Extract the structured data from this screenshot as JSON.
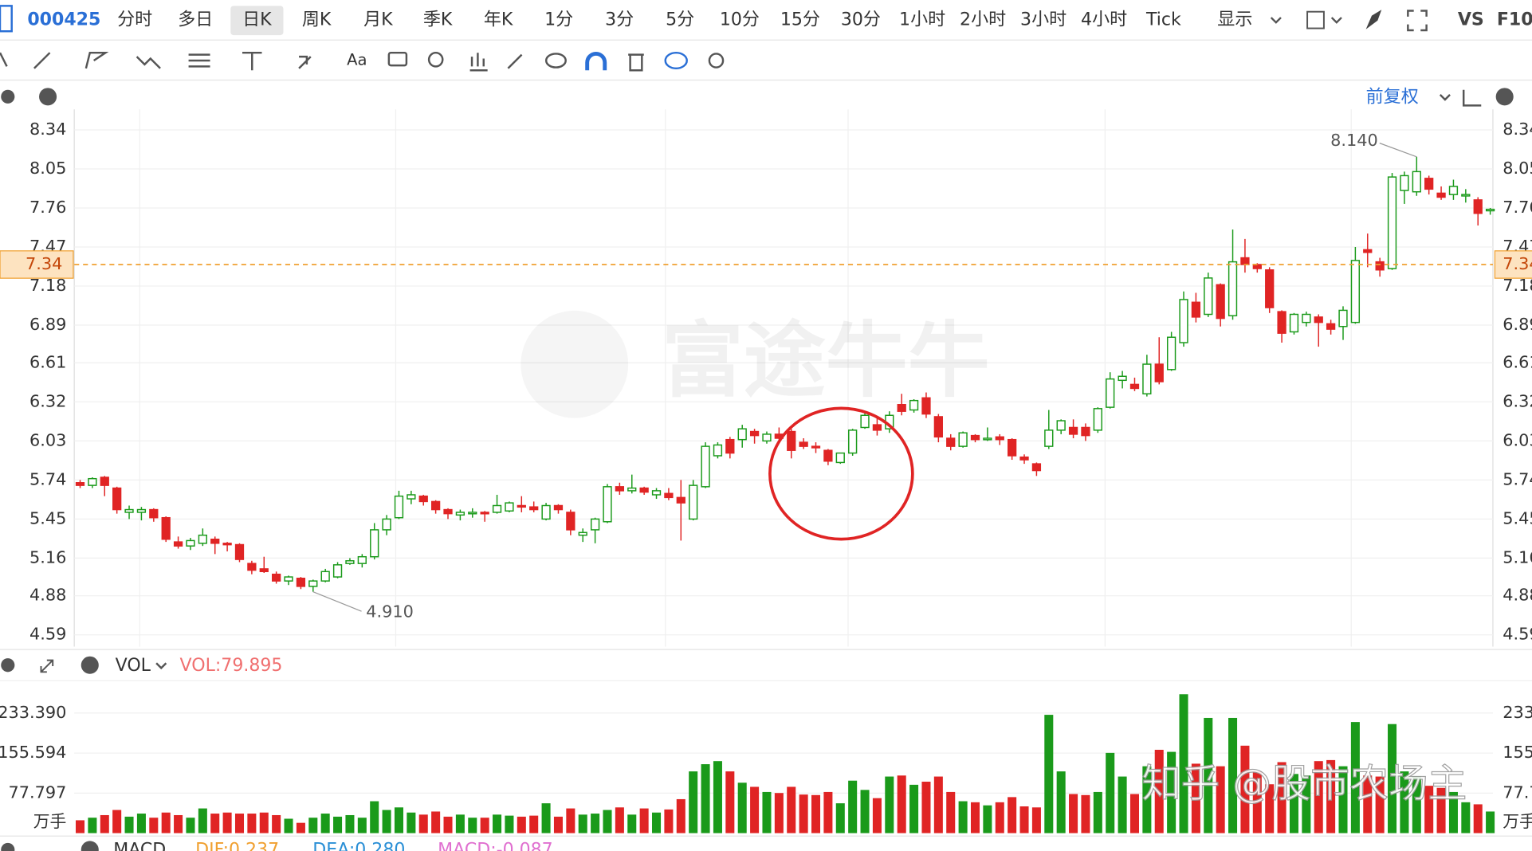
{
  "toolbar": {
    "symbol": "000425",
    "periods": [
      "分时",
      "多日",
      "日K",
      "周K",
      "月K",
      "季K",
      "年K",
      "1分",
      "3分",
      "5分",
      "10分",
      "15分",
      "30分",
      "1小时",
      "2小时",
      "3小时",
      "4小时",
      "Tick"
    ],
    "display": "显示",
    "vs": "VS",
    "f10": "F10",
    "font_button": "Aa",
    "adjust": "前复权"
  },
  "indicators": {
    "vol_name": "VOL",
    "vol_value": "VOL:79.895",
    "macd_name": "MACD",
    "dif": "DIF:0.237",
    "dea": "DEA:0.280",
    "macd": "MACD:-0.087"
  },
  "watermarks": {
    "brand": "富途牛牛",
    "author": "知乎 @股市农场主"
  },
  "chart_data": [
    {
      "type": "candlestick",
      "up_color": "#1a9a1a",
      "down_color": "#e02424",
      "ylim": [
        4.5,
        8.45
      ],
      "yticks": [
        8.34,
        8.05,
        7.76,
        7.47,
        7.18,
        6.89,
        6.61,
        6.32,
        6.03,
        5.74,
        5.45,
        5.16,
        4.88,
        4.59
      ],
      "grid": true,
      "high_label": {
        "value": 8.14,
        "label": "8.140"
      },
      "low_label": {
        "value": 4.91,
        "label": "4.910"
      },
      "price_line": 7.34,
      "price_line_color": "#f0a030",
      "ohlc": [
        [
          5.72,
          5.74,
          5.68,
          5.7
        ],
        [
          5.7,
          5.76,
          5.68,
          5.75
        ],
        [
          5.76,
          5.77,
          5.62,
          5.7
        ],
        [
          5.68,
          5.69,
          5.49,
          5.52
        ],
        [
          5.5,
          5.55,
          5.45,
          5.52
        ],
        [
          5.5,
          5.54,
          5.44,
          5.52
        ],
        [
          5.52,
          5.53,
          5.43,
          5.46
        ],
        [
          5.46,
          5.47,
          5.28,
          5.3
        ],
        [
          5.28,
          5.32,
          5.23,
          5.25
        ],
        [
          5.25,
          5.31,
          5.22,
          5.29
        ],
        [
          5.27,
          5.38,
          5.25,
          5.33
        ],
        [
          5.3,
          5.32,
          5.19,
          5.27
        ],
        [
          5.27,
          5.28,
          5.21,
          5.26
        ],
        [
          5.26,
          5.27,
          5.13,
          5.15
        ],
        [
          5.12,
          5.14,
          5.04,
          5.07
        ],
        [
          5.08,
          5.17,
          5.05,
          5.06
        ],
        [
          5.04,
          5.06,
          4.97,
          4.99
        ],
        [
          4.99,
          5.03,
          4.96,
          5.02
        ],
        [
          5.01,
          5.02,
          4.93,
          4.95
        ],
        [
          4.95,
          5.0,
          4.91,
          4.99
        ],
        [
          4.99,
          5.08,
          4.98,
          5.06
        ],
        [
          5.02,
          5.13,
          5.01,
          5.11
        ],
        [
          5.12,
          5.16,
          5.11,
          5.14
        ],
        [
          5.12,
          5.19,
          5.09,
          5.17
        ],
        [
          5.17,
          5.42,
          5.15,
          5.37
        ],
        [
          5.37,
          5.48,
          5.33,
          5.45
        ],
        [
          5.46,
          5.66,
          5.45,
          5.62
        ],
        [
          5.6,
          5.66,
          5.56,
          5.63
        ],
        [
          5.62,
          5.63,
          5.55,
          5.58
        ],
        [
          5.58,
          5.59,
          5.49,
          5.52
        ],
        [
          5.52,
          5.53,
          5.45,
          5.49
        ],
        [
          5.48,
          5.52,
          5.44,
          5.5
        ],
        [
          5.49,
          5.53,
          5.46,
          5.5
        ],
        [
          5.5,
          5.51,
          5.43,
          5.49
        ],
        [
          5.5,
          5.63,
          5.49,
          5.55
        ],
        [
          5.51,
          5.58,
          5.5,
          5.57
        ],
        [
          5.55,
          5.62,
          5.5,
          5.54
        ],
        [
          5.54,
          5.58,
          5.5,
          5.52
        ],
        [
          5.45,
          5.57,
          5.44,
          5.55
        ],
        [
          5.55,
          5.56,
          5.49,
          5.52
        ],
        [
          5.5,
          5.52,
          5.33,
          5.37
        ],
        [
          5.33,
          5.38,
          5.28,
          5.35
        ],
        [
          5.37,
          5.46,
          5.27,
          5.45
        ],
        [
          5.43,
          5.71,
          5.42,
          5.69
        ],
        [
          5.69,
          5.72,
          5.63,
          5.66
        ],
        [
          5.66,
          5.78,
          5.64,
          5.68
        ],
        [
          5.68,
          5.69,
          5.63,
          5.65
        ],
        [
          5.63,
          5.68,
          5.6,
          5.66
        ],
        [
          5.64,
          5.68,
          5.59,
          5.61
        ],
        [
          5.61,
          5.74,
          5.29,
          5.57
        ],
        [
          5.45,
          5.74,
          5.44,
          5.7
        ],
        [
          5.69,
          6.02,
          5.68,
          5.99
        ],
        [
          5.92,
          6.02,
          5.9,
          6.0
        ],
        [
          6.04,
          6.06,
          5.9,
          5.94
        ],
        [
          6.04,
          6.15,
          5.98,
          6.12
        ],
        [
          6.1,
          6.12,
          6.01,
          6.07
        ],
        [
          6.03,
          6.1,
          6.01,
          6.08
        ],
        [
          6.08,
          6.13,
          6.04,
          6.05
        ],
        [
          6.1,
          6.12,
          5.9,
          5.96
        ],
        [
          6.02,
          6.05,
          5.97,
          5.99
        ],
        [
          5.99,
          6.02,
          5.94,
          5.98
        ],
        [
          5.96,
          5.97,
          5.85,
          5.88
        ],
        [
          5.87,
          5.94,
          5.86,
          5.94
        ],
        [
          5.94,
          6.12,
          5.92,
          6.11
        ],
        [
          6.13,
          6.25,
          6.12,
          6.22
        ],
        [
          6.15,
          6.2,
          6.07,
          6.11
        ],
        [
          6.12,
          6.25,
          6.09,
          6.22
        ],
        [
          6.3,
          6.38,
          6.22,
          6.25
        ],
        [
          6.26,
          6.34,
          6.24,
          6.33
        ],
        [
          6.35,
          6.39,
          6.2,
          6.23
        ],
        [
          6.21,
          6.23,
          6.02,
          6.06
        ],
        [
          6.05,
          6.08,
          5.96,
          5.99
        ],
        [
          5.99,
          6.1,
          5.98,
          6.09
        ],
        [
          6.07,
          6.08,
          6.02,
          6.04
        ],
        [
          6.05,
          6.13,
          6.03,
          6.05
        ],
        [
          6.06,
          6.08,
          6.0,
          6.04
        ],
        [
          6.04,
          6.05,
          5.89,
          5.92
        ],
        [
          5.91,
          5.93,
          5.86,
          5.89
        ],
        [
          5.86,
          5.87,
          5.77,
          5.81
        ],
        [
          5.99,
          6.26,
          5.97,
          6.11
        ],
        [
          6.11,
          6.19,
          6.08,
          6.18
        ],
        [
          6.13,
          6.19,
          6.05,
          6.08
        ],
        [
          6.13,
          6.16,
          6.03,
          6.07
        ],
        [
          6.11,
          6.28,
          6.09,
          6.27
        ],
        [
          6.28,
          6.54,
          6.27,
          6.49
        ],
        [
          6.48,
          6.55,
          6.42,
          6.51
        ],
        [
          6.45,
          6.5,
          6.4,
          6.42
        ],
        [
          6.38,
          6.67,
          6.36,
          6.6
        ],
        [
          6.6,
          6.8,
          6.45,
          6.47
        ],
        [
          6.56,
          6.84,
          6.55,
          6.8
        ],
        [
          6.76,
          7.14,
          6.73,
          7.08
        ],
        [
          7.06,
          7.13,
          6.91,
          6.95
        ],
        [
          6.97,
          7.28,
          6.95,
          7.24
        ],
        [
          7.19,
          7.2,
          6.88,
          6.94
        ],
        [
          6.96,
          7.6,
          6.93,
          7.36
        ],
        [
          7.39,
          7.53,
          7.28,
          7.34
        ],
        [
          7.34,
          7.35,
          7.28,
          7.31
        ],
        [
          7.3,
          7.32,
          6.98,
          7.02
        ],
        [
          6.99,
          7.0,
          6.76,
          6.83
        ],
        [
          6.84,
          6.98,
          6.82,
          6.97
        ],
        [
          6.91,
          6.99,
          6.88,
          6.97
        ],
        [
          6.95,
          6.97,
          6.73,
          6.91
        ],
        [
          6.9,
          6.93,
          6.82,
          6.86
        ],
        [
          6.88,
          7.03,
          6.78,
          7.0
        ],
        [
          6.91,
          7.47,
          6.9,
          7.37
        ],
        [
          7.45,
          7.57,
          7.32,
          7.43
        ],
        [
          7.36,
          7.39,
          7.25,
          7.3
        ],
        [
          7.31,
          8.02,
          7.3,
          7.99
        ],
        [
          7.89,
          8.03,
          7.79,
          8.0
        ],
        [
          7.88,
          8.14,
          7.85,
          8.03
        ],
        [
          7.98,
          8.0,
          7.86,
          7.9
        ],
        [
          7.87,
          7.92,
          7.82,
          7.84
        ],
        [
          7.86,
          7.97,
          7.82,
          7.92
        ],
        [
          7.86,
          7.9,
          7.8,
          7.86
        ],
        [
          7.82,
          7.84,
          7.63,
          7.72
        ],
        [
          7.74,
          7.76,
          7.71,
          7.75
        ]
      ]
    },
    {
      "type": "bar",
      "unit_label": "万手",
      "ylim": [
        0,
        300
      ],
      "yticks": [
        {
          "value": 233.39,
          "label": "233.390"
        },
        {
          "value": 155.594,
          "label": "155.594"
        },
        {
          "value": 77.797,
          "label": "77.797"
        }
      ],
      "values": [
        25,
        30,
        35,
        45,
        32,
        38,
        30,
        40,
        35,
        30,
        48,
        38,
        40,
        38,
        38,
        40,
        35,
        28,
        20,
        30,
        38,
        32,
        35,
        30,
        62,
        45,
        50,
        40,
        36,
        42,
        32,
        36,
        30,
        30,
        36,
        34,
        32,
        34,
        58,
        32,
        48,
        36,
        38,
        45,
        50,
        36,
        48,
        40,
        46,
        66,
        120,
        134,
        140,
        120,
        98,
        90,
        80,
        78,
        90,
        75,
        74,
        80,
        58,
        102,
        84,
        68,
        110,
        112,
        94,
        100,
        110,
        80,
        62,
        60,
        54,
        60,
        70,
        52,
        50,
        230,
        120,
        76,
        74,
        80,
        156,
        110,
        76,
        130,
        162,
        158,
        270,
        135,
        224,
        130,
        224,
        170,
        120,
        95,
        138,
        115,
        112,
        140,
        142,
        130,
        216,
        112,
        110,
        212,
        120,
        110,
        92,
        88,
        80,
        60,
        56,
        42
      ]
    }
  ]
}
